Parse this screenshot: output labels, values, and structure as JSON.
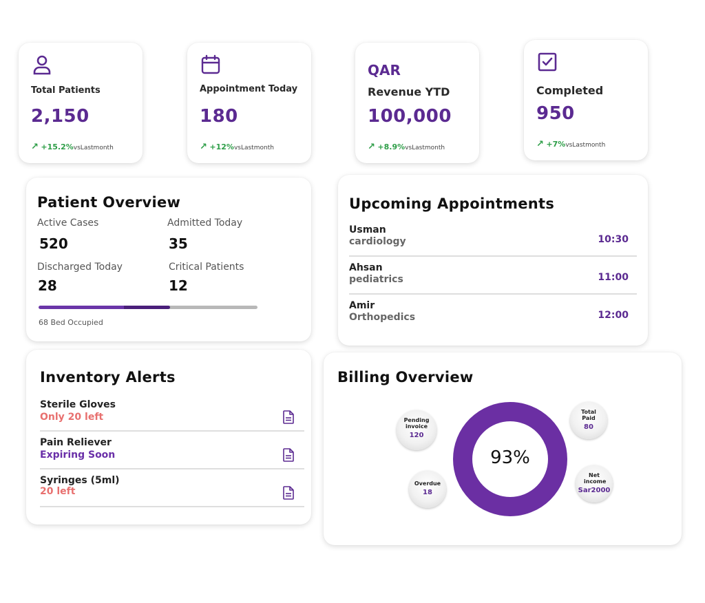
{
  "stats": [
    {
      "icon": "user-icon",
      "label": "Total Patients",
      "value": "2,150",
      "change": "+15.2%",
      "vs": "vsLastmonth"
    },
    {
      "icon": "calendar-icon",
      "label": "Appointment Today",
      "value": "180",
      "change": "+12%",
      "vs": "vsLastmonth"
    },
    {
      "icon": "currency-text",
      "currency": "QAR",
      "label": "Revenue YTD",
      "value": "100,000",
      "change": "+8.9%",
      "vs": "vsLastmonth"
    },
    {
      "icon": "checkbox-icon",
      "label": "Completed",
      "value": "950",
      "change": "+7%",
      "vs": "vsLastmonth"
    }
  ],
  "patient_overview": {
    "title": "Patient Overview",
    "metrics": [
      {
        "label": "Active Cases",
        "value": "520"
      },
      {
        "label": "Admitted Today",
        "value": "35"
      },
      {
        "label": "Discharged Today",
        "value": "28"
      },
      {
        "label": "Critical Patients",
        "value": "12"
      }
    ],
    "bed_progress": 0.6,
    "bed_note": "68 Bed Occupied"
  },
  "appointments": {
    "title": "Upcoming Appointments",
    "items": [
      {
        "name": "Usman",
        "dept": "cardiology",
        "time": "10:30"
      },
      {
        "name": "Ahsan",
        "dept": "pediatrics",
        "time": "11:00"
      },
      {
        "name": "Amir",
        "dept": "Orthopedics",
        "time": "12:00"
      }
    ]
  },
  "inventory": {
    "title": "Inventory Alerts",
    "items": [
      {
        "name": "Sterile Gloves",
        "status": "Only 20 left",
        "status_color": "#e8706f"
      },
      {
        "name": "Pain Reliever",
        "status": "Expiring Soon",
        "status_color": "#6a2fa8"
      },
      {
        "name": "Syringes (5ml)",
        "status": "20 left",
        "status_color": "#e8706f"
      }
    ]
  },
  "billing": {
    "title": "Billing Overview",
    "percent": "93%",
    "percent_value": 93,
    "bubbles": [
      {
        "label": "Pending invoice",
        "value": "120"
      },
      {
        "label": "Total Paid",
        "value": "80"
      },
      {
        "label": "Overdue",
        "value": "18"
      },
      {
        "label": "Net income",
        "value": "Sar2000"
      }
    ]
  },
  "colors": {
    "accent": "#5b2a91",
    "positive": "#2e9e48",
    "alert": "#e8706f"
  }
}
